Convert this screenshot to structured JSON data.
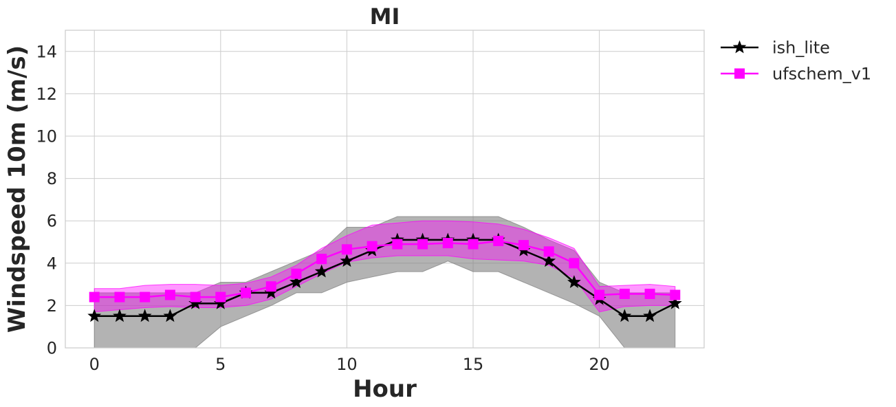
{
  "chart_data": {
    "type": "line",
    "title": "MI",
    "xlabel": "Hour",
    "ylabel": "Windspeed 10m (m/s)",
    "xlim": [
      -1.15,
      24.15
    ],
    "ylim": [
      0,
      15
    ],
    "xticks": [
      0,
      5,
      10,
      15,
      20
    ],
    "yticks": [
      0,
      2,
      4,
      6,
      8,
      10,
      12,
      14
    ],
    "grid": true,
    "legend_position": "outside-top-right",
    "x": [
      0,
      1,
      2,
      3,
      4,
      5,
      6,
      7,
      8,
      9,
      10,
      11,
      12,
      13,
      14,
      15,
      16,
      17,
      18,
      19,
      20,
      21,
      22,
      23
    ],
    "series": [
      {
        "name": "ish_lite",
        "color": "#000000",
        "band_color": "#808080",
        "marker": "star",
        "values": [
          1.5,
          1.5,
          1.5,
          1.5,
          2.1,
          2.1,
          2.6,
          2.6,
          3.1,
          3.6,
          4.1,
          4.6,
          5.1,
          5.1,
          5.1,
          5.1,
          5.1,
          4.6,
          4.1,
          3.1,
          2.3,
          1.5,
          1.5,
          2.1
        ],
        "band_low": [
          0,
          0,
          0,
          0,
          0,
          1.0,
          1.5,
          2.0,
          2.6,
          2.6,
          3.1,
          3.35,
          3.6,
          3.6,
          4.1,
          3.6,
          3.6,
          3.1,
          2.6,
          2.1,
          1.5,
          0,
          0,
          0
        ],
        "band_high": [
          2.6,
          2.6,
          2.6,
          2.6,
          2.6,
          3.1,
          3.1,
          3.6,
          4.1,
          4.6,
          5.7,
          5.7,
          6.2,
          6.2,
          6.2,
          6.2,
          6.2,
          5.7,
          5.1,
          4.6,
          3.1,
          2.6,
          2.6,
          2.6
        ]
      },
      {
        "name": "ufschem_v1",
        "color": "#ff00ff",
        "band_color": "#ff00ff",
        "marker": "square",
        "values": [
          2.4,
          2.4,
          2.4,
          2.5,
          2.4,
          2.4,
          2.6,
          2.9,
          3.5,
          4.2,
          4.65,
          4.8,
          4.9,
          4.9,
          4.95,
          4.9,
          5.05,
          4.85,
          4.55,
          4.0,
          2.5,
          2.55,
          2.55,
          2.5
        ],
        "band_low": [
          1.7,
          1.8,
          1.9,
          1.95,
          1.9,
          1.9,
          2.0,
          2.3,
          2.9,
          3.5,
          4.05,
          4.25,
          4.35,
          4.35,
          4.35,
          4.2,
          4.15,
          4.1,
          3.9,
          3.3,
          1.7,
          1.95,
          2.0,
          2.0
        ],
        "band_high": [
          2.8,
          2.8,
          2.95,
          3.0,
          3.0,
          2.95,
          3.05,
          3.35,
          3.9,
          4.7,
          5.3,
          5.8,
          5.9,
          6.0,
          6.0,
          5.95,
          5.85,
          5.6,
          5.2,
          4.7,
          2.9,
          2.95,
          3.0,
          2.9
        ]
      }
    ]
  }
}
